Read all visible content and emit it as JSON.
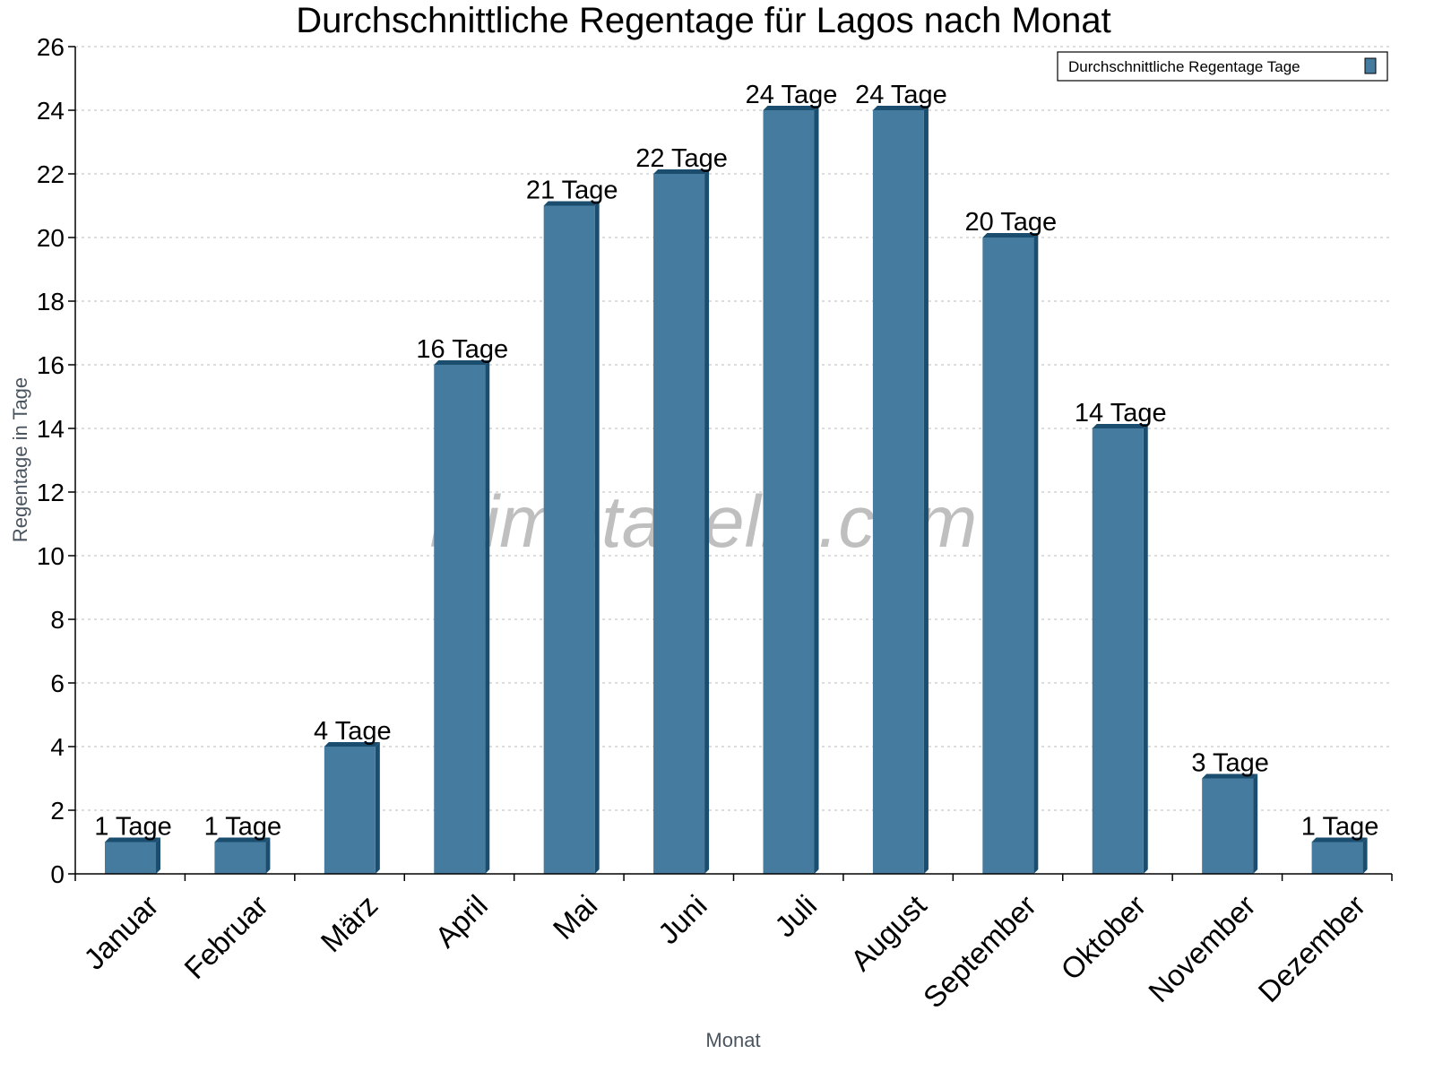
{
  "chart_data": {
    "type": "bar",
    "title": "Durchschnittliche Regentage für Lagos nach Monat",
    "xlabel": "Monat",
    "ylabel": "Regentage in Tage",
    "categories": [
      "Januar",
      "Februar",
      "März",
      "April",
      "Mai",
      "Juni",
      "Juli",
      "August",
      "September",
      "Oktober",
      "November",
      "Dezember"
    ],
    "series": [
      {
        "name": "Durchschnittliche Regentage Tage",
        "values": [
          1,
          1,
          4,
          16,
          21,
          22,
          24,
          24,
          20,
          14,
          3,
          1
        ],
        "color": "#467ba0",
        "side_color": "#1b4d6e"
      }
    ],
    "data_labels": [
      "1 Tage",
      "1 Tage",
      "4 Tage",
      "16 Tage",
      "21 Tage",
      "22 Tage",
      "24 Tage",
      "24 Tage",
      "20 Tage",
      "14 Tage",
      "3 Tage",
      "1 Tage"
    ],
    "yticks": [
      0,
      2,
      4,
      6,
      8,
      10,
      12,
      14,
      16,
      18,
      20,
      22,
      24,
      26
    ],
    "ylim": [
      0,
      26
    ],
    "grid": true,
    "legend_position": "top-right",
    "watermark": "klimatabelle.com"
  }
}
